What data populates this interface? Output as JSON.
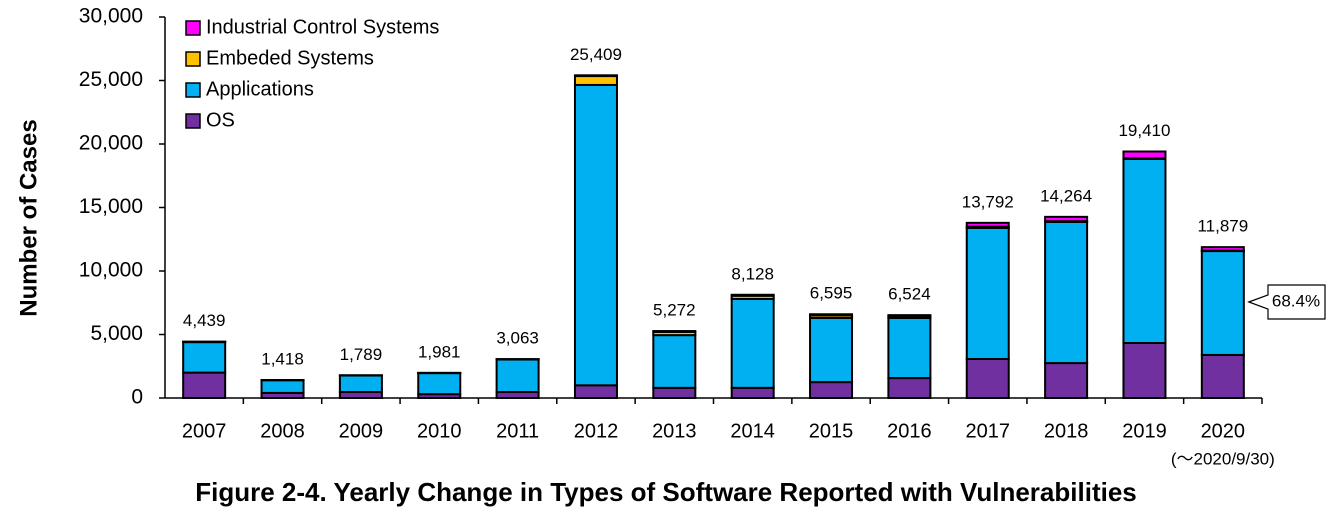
{
  "chart_data": {
    "type": "stacked_bar",
    "title": "Figure 2-4. Yearly Change in Types of Software Reported with Vulnerabilities",
    "y_label": "Number of Cases",
    "categories": [
      "2007",
      "2008",
      "2009",
      "2010",
      "2011",
      "2012",
      "2013",
      "2014",
      "2015",
      "2016",
      "2017",
      "2018",
      "2019",
      "2020"
    ],
    "note": "(～2020/9/30)",
    "callout": "68.4%",
    "series": [
      {
        "name": "OS",
        "color": "#7030a0",
        "values": [
          2000,
          400,
          470,
          300,
          470,
          1000,
          800,
          800,
          1250,
          1570,
          3070,
          2750,
          4330,
          3390
        ]
      },
      {
        "name": "Applications",
        "color": "#00b0f0",
        "values": [
          2400,
          1000,
          1300,
          1660,
          2560,
          23650,
          4150,
          7000,
          5050,
          4730,
          10320,
          11110,
          14490,
          8180
        ]
      },
      {
        "name": "Embeded Systems",
        "color": "#ffc000",
        "values": [
          20,
          10,
          10,
          11,
          20,
          700,
          250,
          250,
          200,
          130,
          100,
          60,
          50,
          30
        ]
      },
      {
        "name": "Industrial Control Systems",
        "color": "#ff00ff",
        "values": [
          19,
          8,
          9,
          10,
          13,
          59,
          72,
          78,
          95,
          94,
          302,
          344,
          540,
          279
        ]
      }
    ],
    "totals": [
      4439,
      1418,
      1789,
      1981,
      3063,
      25409,
      5272,
      8128,
      6595,
      6524,
      13792,
      14264,
      19410,
      11879
    ],
    "total_labels": [
      "4,439",
      "1,418",
      "1,789",
      "1,981",
      "3,063",
      "25,409",
      "5,272",
      "8,128",
      "6,595",
      "6,524",
      "13,792",
      "14,264",
      "19,410",
      "11,879"
    ],
    "ylim": [
      0,
      30000
    ],
    "yticks": [
      0,
      {
        "value": 5000,
        "label": "5,000"
      },
      {
        "value": 10000,
        "label": "10,000"
      },
      {
        "value": 15000,
        "label": "15,000"
      },
      {
        "value": 20000,
        "label": "20,000"
      },
      {
        "value": 25000,
        "label": "25,000"
      },
      {
        "value": 30000,
        "label": "30,000"
      }
    ],
    "grid": false,
    "legend": "top-left"
  }
}
